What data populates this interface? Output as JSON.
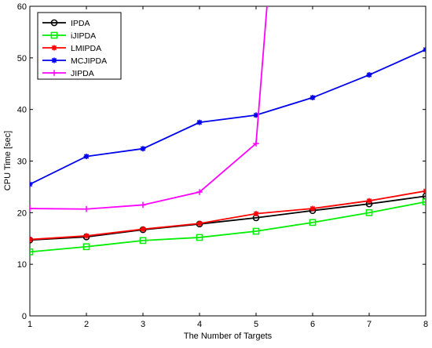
{
  "chart_data": {
    "type": "line",
    "title": "",
    "xlabel": "The Number of Targets",
    "ylabel": "CPU Time [sec]",
    "xlim": [
      1,
      8
    ],
    "ylim": [
      0,
      60
    ],
    "x_ticks": [
      1,
      2,
      3,
      4,
      5,
      6,
      7,
      8
    ],
    "y_ticks": [
      0,
      10,
      20,
      30,
      40,
      50,
      60
    ],
    "grid": false,
    "legend_position": "top-left",
    "series": [
      {
        "name": "IPDA",
        "color": "#000000",
        "marker": "circle",
        "x": [
          1,
          2,
          3,
          4,
          5,
          6,
          7,
          8
        ],
        "y": [
          14.7,
          15.3,
          16.7,
          17.8,
          19.0,
          20.4,
          21.7,
          23.2
        ]
      },
      {
        "name": "iJIPDA",
        "color": "#00ee00",
        "marker": "square",
        "x": [
          1,
          2,
          3,
          4,
          5,
          6,
          7,
          8
        ],
        "y": [
          12.4,
          13.4,
          14.6,
          15.2,
          16.4,
          18.1,
          20.0,
          22.1
        ]
      },
      {
        "name": "LMIPDA",
        "color": "#ff0000",
        "marker": "star",
        "x": [
          1,
          2,
          3,
          4,
          5,
          6,
          7,
          8
        ],
        "y": [
          14.8,
          15.5,
          16.8,
          17.9,
          19.8,
          20.8,
          22.3,
          24.2
        ]
      },
      {
        "name": "MCJIPDA",
        "color": "#0000ee",
        "marker": "star",
        "x": [
          1,
          2,
          3,
          4,
          5,
          6,
          7,
          8
        ],
        "y": [
          25.5,
          30.9,
          32.4,
          37.5,
          38.9,
          42.3,
          46.7,
          51.6
        ]
      },
      {
        "name": "JIPDA",
        "color": "#ff00ff",
        "marker": "plus",
        "x": [
          1,
          2,
          3,
          4,
          5,
          5.2
        ],
        "y": [
          20.8,
          20.7,
          21.5,
          24.0,
          33.4,
          61.0
        ]
      }
    ]
  }
}
